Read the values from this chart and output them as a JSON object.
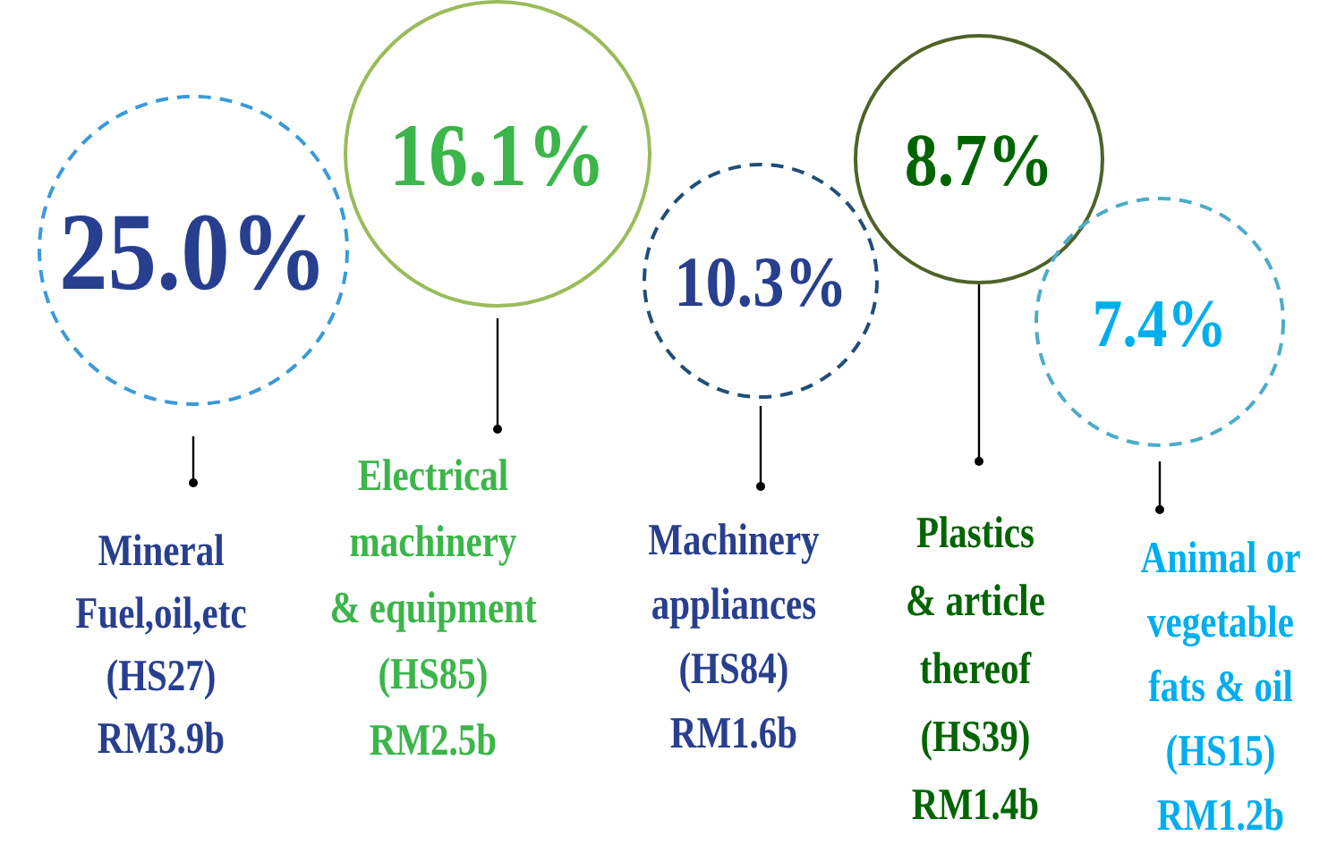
{
  "chart_data": {
    "type": "other",
    "categories": [
      "Mineral\nFuel,oil,etc\n(HS27)\nRM3.9b",
      "Electrical\nmachinery\n& equipment\n(HS85)\nRM2.5b",
      "Machinery\nappliances\n(HS84)\nRM1.6b",
      "Plastics\n& article\nthereof\n(HS39)\nRM1.4b",
      "Animal or\nvegetable\nfats & oil\n(HS15)\nRM1.2b"
    ],
    "values": [
      25.0,
      16.1,
      10.3,
      8.7,
      7.4
    ],
    "value_labels": [
      "25.0%",
      "16.1%",
      "10.3%",
      "8.7%",
      "7.4%"
    ],
    "colors": [
      "#283f8f",
      "#3cb54a",
      "#283f8f",
      "#006400",
      "#00aeef"
    ]
  }
}
